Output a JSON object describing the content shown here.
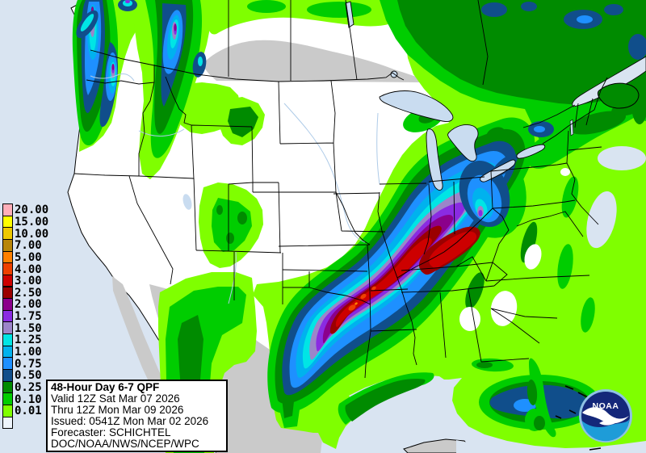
{
  "map": {
    "ocean_color": "#D9E4F1",
    "land_color": "#FFFFFF",
    "no_data_color": "#CACACA",
    "lake_color": "#C9DCF0",
    "border_color": "#000000"
  },
  "legend": {
    "entries": [
      {
        "label": "20.00",
        "color": "#FFAEB9"
      },
      {
        "label": "15.00",
        "color": "#FFFF00"
      },
      {
        "label": "10.00",
        "color": "#EEC900"
      },
      {
        "label": "7.00",
        "color": "#B8860B"
      },
      {
        "label": "5.00",
        "color": "#FF8000"
      },
      {
        "label": "4.00",
        "color": "#EE4000"
      },
      {
        "label": "3.00",
        "color": "#CD0000"
      },
      {
        "label": "2.50",
        "color": "#9B0000"
      },
      {
        "label": "2.00",
        "color": "#8B008B"
      },
      {
        "label": "1.75",
        "color": "#8A2BE2"
      },
      {
        "label": "1.50",
        "color": "#9C85C9"
      },
      {
        "label": "1.25",
        "color": "#00E5E5"
      },
      {
        "label": "1.00",
        "color": "#00B2EE"
      },
      {
        "label": "0.75",
        "color": "#1E90FF"
      },
      {
        "label": "0.50",
        "color": "#104E8B"
      },
      {
        "label": "0.25",
        "color": "#008B00"
      },
      {
        "label": "0.10",
        "color": "#00CD00"
      },
      {
        "label": "0.01",
        "color": "#7FFF00"
      },
      {
        "label": "",
        "color": "#EEF4FB"
      }
    ]
  },
  "info_box": {
    "title": "48-Hour Day 6-7 QPF",
    "line1": "Valid 12Z Sat Mar 07 2026",
    "line2": "Thru 12Z Mon Mar 09 2026",
    "line3": "Issued: 0541Z Mon Mar 02 2026",
    "line4": "Forecaster: SCHICHTEL",
    "line5": "DOC/NOAA/NWS/NCEP/WPC"
  },
  "logo": {
    "text": "NOAA"
  }
}
